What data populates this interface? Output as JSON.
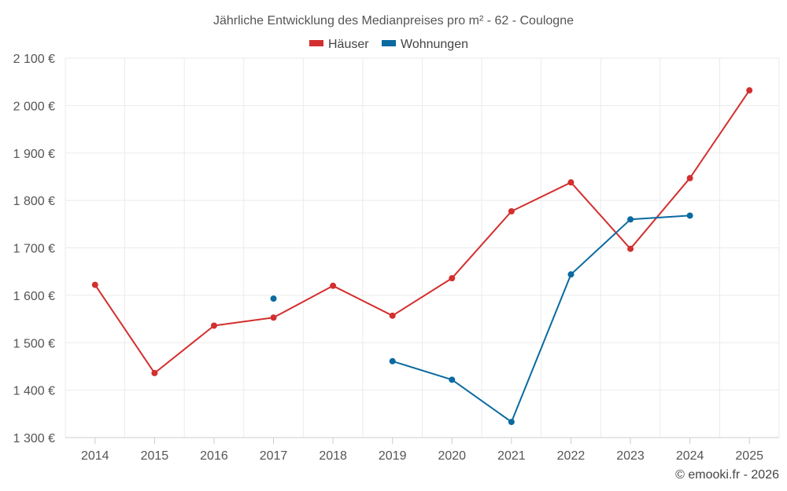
{
  "chart_data": {
    "type": "line",
    "title": "Jährliche Entwicklung des Medianpreises pro m² - 62 - Coulogne",
    "categories": [
      "2014",
      "2015",
      "2016",
      "2017",
      "2018",
      "2019",
      "2020",
      "2021",
      "2022",
      "2023",
      "2024",
      "2025"
    ],
    "ylim": [
      1300,
      2100
    ],
    "yticks": [
      1300,
      1400,
      1500,
      1600,
      1700,
      1800,
      1900,
      2000,
      2100
    ],
    "ytick_labels": [
      "1 300 €",
      "1 400 €",
      "1 500 €",
      "1 600 €",
      "1 700 €",
      "1 800 €",
      "1 900 €",
      "2 000 €",
      "2 100 €"
    ],
    "grid": true,
    "legend_position": "top-center",
    "series": [
      {
        "name": "Häuser",
        "color": "#d32f2f",
        "values": [
          1622,
          1436,
          1536,
          1553,
          1620,
          1557,
          1636,
          1777,
          1838,
          1698,
          1847,
          2032
        ]
      },
      {
        "name": "Wohnungen",
        "color": "#0a6aa1",
        "values": [
          null,
          null,
          null,
          1593,
          null,
          1461,
          1422,
          1333,
          1644,
          1760,
          1768,
          null
        ]
      }
    ],
    "credit": "© emooki.fr - 2026"
  }
}
